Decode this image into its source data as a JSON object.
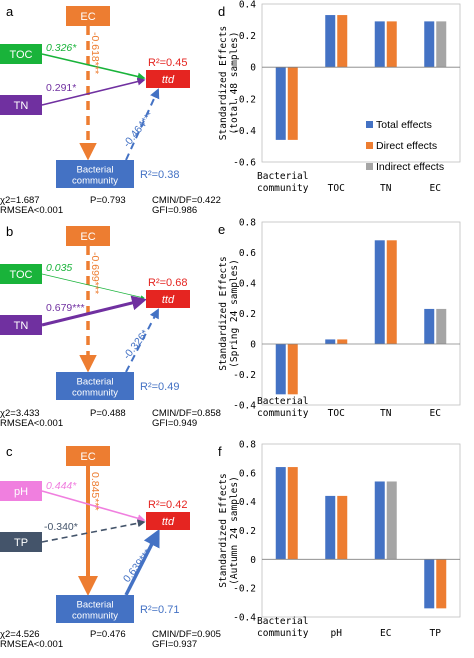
{
  "colors": {
    "ec": "#ED7D31",
    "toc": "#19B33A",
    "tn": "#7030A0",
    "ttd": "#E52521",
    "bacterial": "#4472C4",
    "ph": "#F07FDF",
    "tp": "#44546A",
    "total": "#4472C4",
    "direct": "#ED7D31",
    "indirect": "#A5A5A5"
  },
  "panels": [
    {
      "letter": "a",
      "ec": "EC",
      "x1": "TOC",
      "x2": "TN",
      "ttd": "ttd",
      "bac": "Bacterial\ncommunity",
      "r2_ttd": "R²=0.45",
      "r2_bac": "R²=0.38",
      "coef_ec_bac": "-0.618***",
      "coef_x1": "0.326*",
      "coef_x2": "0.291*",
      "coef_bac_ttd": "-0.464***",
      "stats": [
        "χ2=1.687",
        "P=0.793",
        "CMIN/DF=0.422",
        "RMSEA<0.001",
        "GFI=0.986"
      ]
    },
    {
      "letter": "b",
      "ec": "EC",
      "x1": "TOC",
      "x2": "TN",
      "ttd": "ttd",
      "bac": "Bacterial\ncommunity",
      "r2_ttd": "R²=0.68",
      "r2_bac": "R²=0.49",
      "coef_ec_bac": "-0.699***",
      "coef_x1": "0.035",
      "coef_x2": "0.679***",
      "coef_bac_ttd": "-0.326*",
      "stats": [
        "χ2=3.433",
        "P=0.488",
        "CMIN/DF=0.858",
        "RMSEA<0.001",
        "GFI=0.949"
      ]
    },
    {
      "letter": "c",
      "ec": "EC",
      "x1": "pH",
      "x2": "TP",
      "ttd": "ttd",
      "bac": "Bacterial\ncommunity",
      "r2_ttd": "R²=0.42",
      "r2_bac": "R²=0.71",
      "coef_ec_bac": "0.845***",
      "coef_x1": "0.444*",
      "coef_x2": "-0.340*",
      "coef_bac_ttd": "0.639***",
      "stats": [
        "χ2=4.526",
        "P=0.476",
        "CMIN/DF=0.905",
        "RMSEA<0.001",
        "GFI=0.937"
      ]
    }
  ],
  "chart_data": [
    {
      "type": "bar",
      "panel": "d",
      "ylabel": "Standardized  Effects\n(total 48 samples)",
      "categories": [
        "Bacterial\ncommunity",
        "TOC",
        "TN",
        "EC"
      ],
      "ylim": [
        -0.6,
        0.4
      ],
      "ticks": [
        "0.4",
        "0.2",
        "0",
        "-0.2",
        "-0.4",
        "-0.6"
      ],
      "series": [
        {
          "name": "Total effects",
          "values": [
            -0.46,
            0.33,
            0.29,
            0.29
          ]
        },
        {
          "name": "Direct effects",
          "values": [
            -0.46,
            0.33,
            0.29,
            null
          ]
        },
        {
          "name": "Indirect effects",
          "values": [
            null,
            null,
            null,
            0.29
          ]
        }
      ],
      "legend": "bottom-right"
    },
    {
      "type": "bar",
      "panel": "e",
      "ylabel": "Standardized  Effects\n(Spring 24 samples)",
      "categories": [
        "Bacterial\ncommunity",
        "TOC",
        "TN",
        "EC"
      ],
      "ylim": [
        -0.4,
        0.8
      ],
      "ticks": [
        "0.8",
        "0.6",
        "0.4",
        "0.2",
        "0",
        "-0.2",
        "-0.4"
      ],
      "series": [
        {
          "name": "Total effects",
          "values": [
            -0.33,
            0.03,
            0.68,
            0.23
          ]
        },
        {
          "name": "Direct effects",
          "values": [
            -0.33,
            0.03,
            0.68,
            null
          ]
        },
        {
          "name": "Indirect effects",
          "values": [
            null,
            null,
            null,
            0.23
          ]
        }
      ]
    },
    {
      "type": "bar",
      "panel": "f",
      "ylabel": "Standardized  Effects\n(Autumn 24 samples)",
      "categories": [
        "Bacterial\ncommunity",
        "pH",
        "EC",
        "TP"
      ],
      "ylim": [
        -0.4,
        0.8
      ],
      "ticks": [
        "0.8",
        "0.6",
        "0.4",
        "0.2",
        "0",
        "-0.2",
        "-0.4"
      ],
      "series": [
        {
          "name": "Total effects",
          "values": [
            0.64,
            0.44,
            0.54,
            -0.34
          ]
        },
        {
          "name": "Direct effects",
          "values": [
            0.64,
            0.44,
            null,
            -0.34
          ]
        },
        {
          "name": "Indirect effects",
          "values": [
            null,
            null,
            0.54,
            null
          ]
        }
      ]
    }
  ]
}
